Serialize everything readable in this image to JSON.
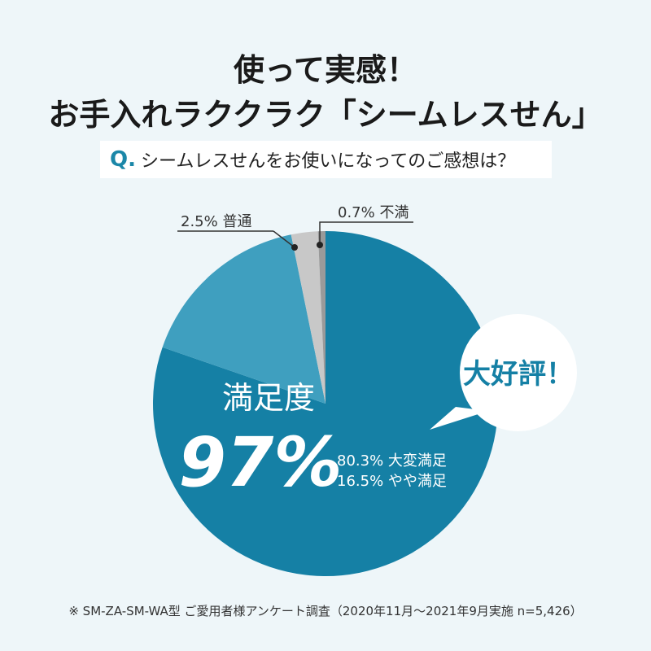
{
  "title_line1": "使って実感！",
  "title_line2": "お手入れラククラク「シームレスせん」",
  "question_prefix": "Q.",
  "question": "シームレスせんをお使いになってのご感想は？",
  "bubble": "大好評！",
  "satisfaction_label": "満足度",
  "satisfaction_value": "97%",
  "footnote": "※ SM-ZA-SM-WA型 ご愛用者様アンケート調査（2020年11月〜2021年9月実施 n=5,426）",
  "chart_data": {
    "type": "pie",
    "slices": [
      {
        "label": "80.3% 大変満足",
        "value": 80.3,
        "color": "#1580a5"
      },
      {
        "label": "16.5% やや満足",
        "value": 16.5,
        "color": "#3f9fbf"
      },
      {
        "label": "2.5% 普通",
        "value": 2.5,
        "color": "#c8c8c8"
      },
      {
        "label": "0.7% 不満",
        "value": 0.7,
        "color": "#9a9a9a"
      }
    ],
    "start": "top",
    "direction": "clockwise"
  }
}
